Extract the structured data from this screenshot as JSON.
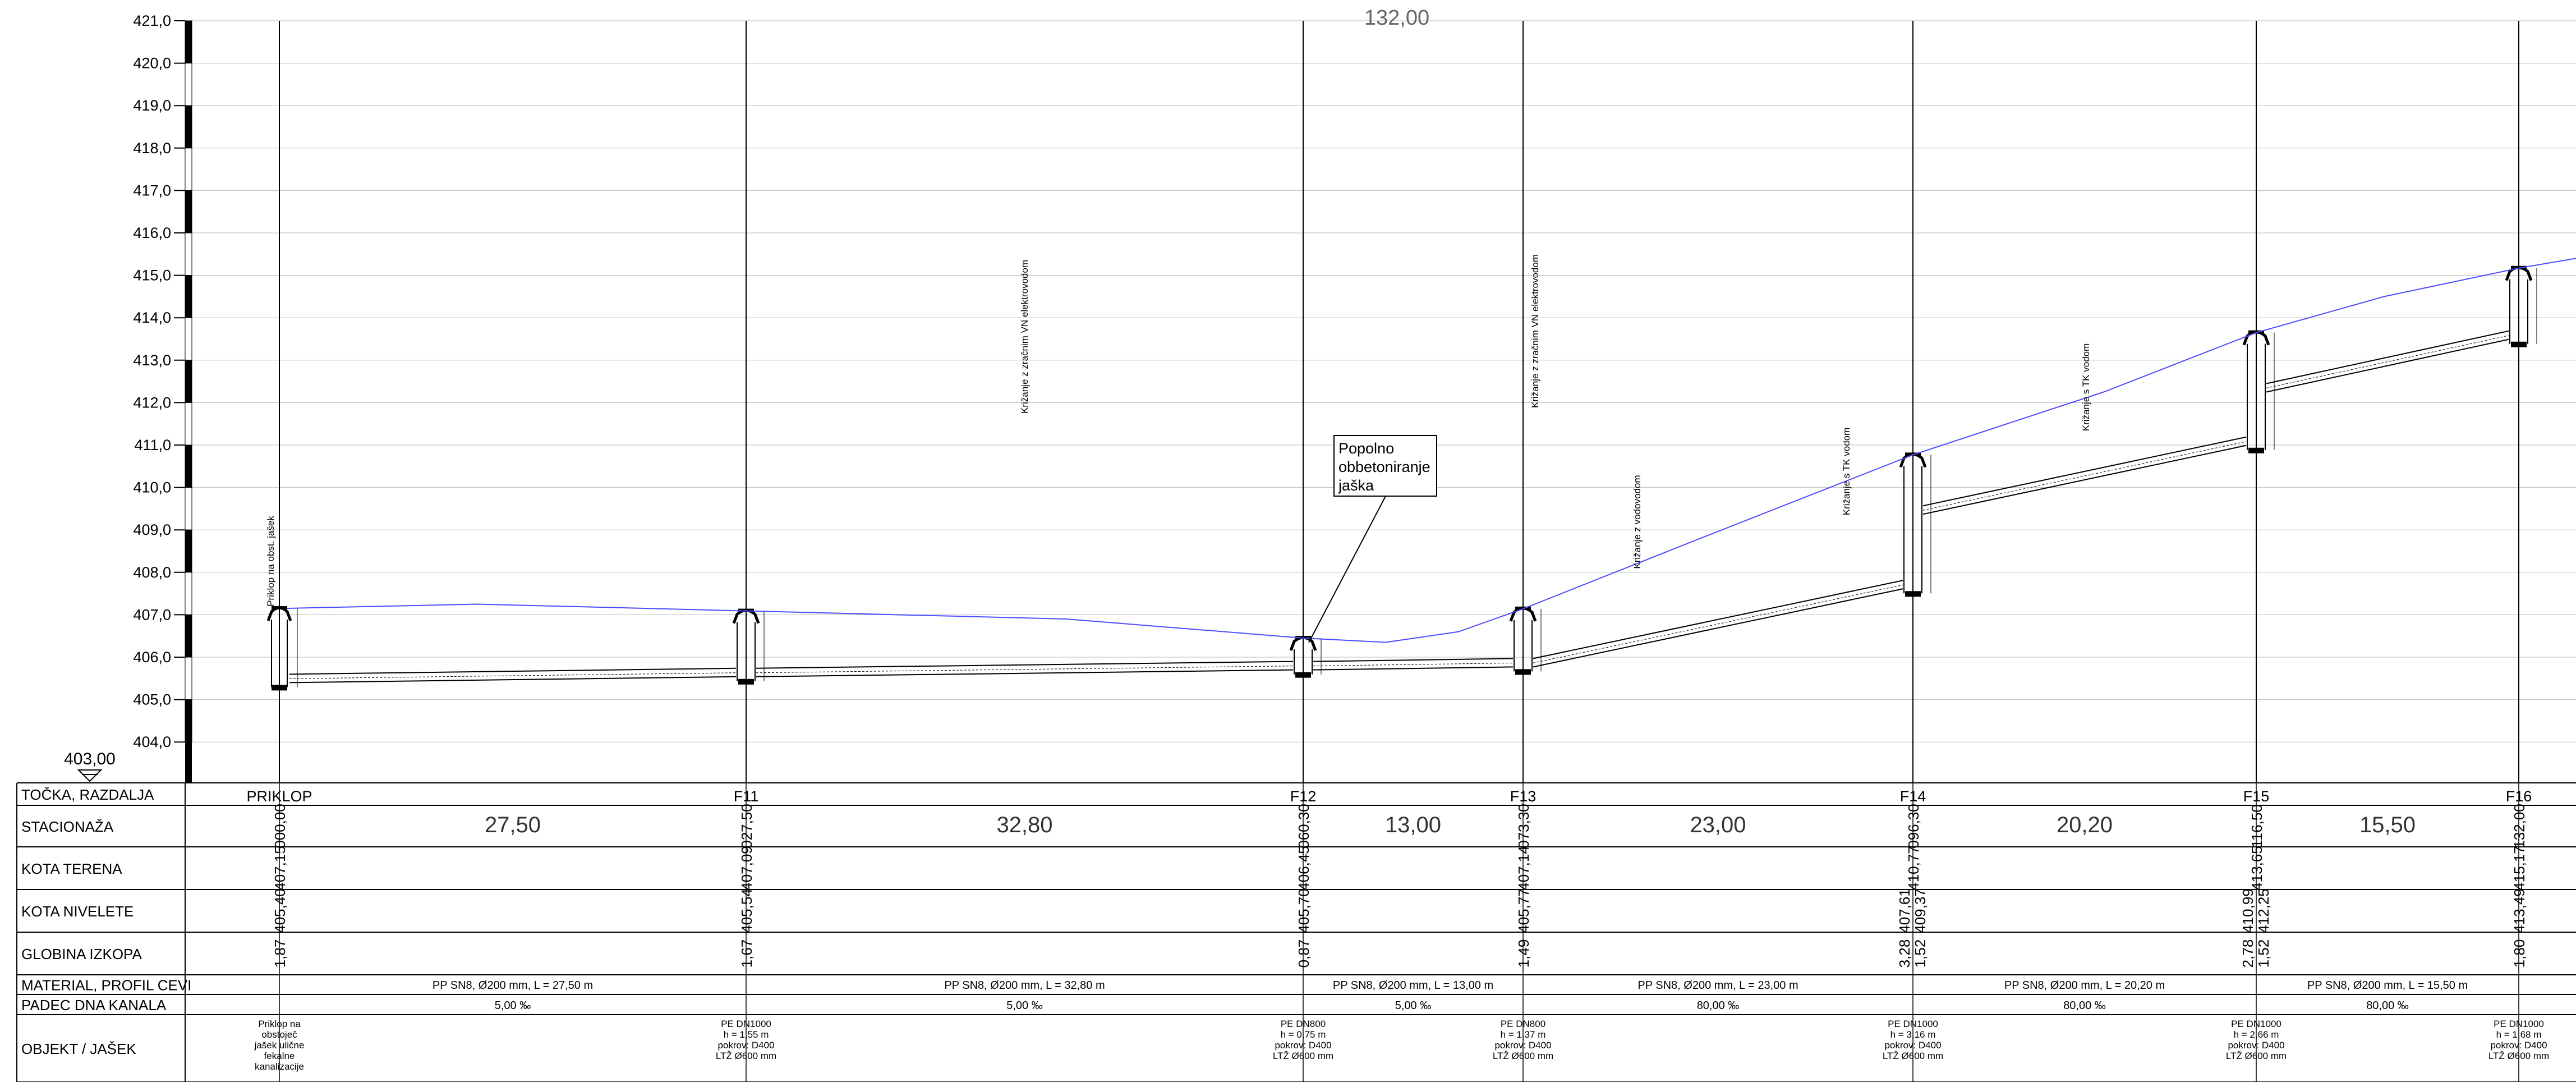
{
  "elevation_axis": {
    "ticks": [
      "421,0",
      "420,0",
      "419,0",
      "418,0",
      "417,0",
      "416,0",
      "415,0",
      "414,0",
      "413,0",
      "412,0",
      "411,0",
      "410,0",
      "409,0",
      "408,0",
      "407,0",
      "406,0",
      "405,0",
      "404,0"
    ],
    "datum": "403,00"
  },
  "top_length": "132,00",
  "row_labels": [
    "TOČKA, RAZDALJA",
    "STACIONAŽA",
    "KOTA TERENA",
    "KOTA NIVELETE",
    "GLOBINA IZKOPA",
    "MATERIAL, PROFIL CEVI",
    "PADEC DNA KANALA",
    "OBJEKT / JAŠEK"
  ],
  "points": [
    {
      "name": "PRIKLOP",
      "stationing": "000,00",
      "terrain": "407,15",
      "invert": "405,40",
      "invert2": "",
      "depth": "1,87",
      "depth2": "",
      "object": [
        "Priklop na",
        "obstoječ",
        "jašek ulične",
        "fekalne",
        "kanalizacije"
      ],
      "vertical_note": "Priklop na obst. jašek"
    },
    {
      "name": "F11",
      "stationing": "027,50",
      "terrain": "407,09",
      "invert": "405,54",
      "invert2": "",
      "depth": "1,67",
      "depth2": "",
      "object": [
        "PE DN1000",
        "h = 1,55 m",
        "pokrov: D400",
        "LTŽ Ø600 mm"
      ]
    },
    {
      "name": "F12",
      "stationing": "060,30",
      "terrain": "406,45",
      "invert": "405,70",
      "invert2": "",
      "depth": "0,87",
      "depth2": "",
      "object": [
        "PE DN800",
        "h = 0,75 m",
        "pokrov: D400",
        "LTŽ Ø600 mm"
      ]
    },
    {
      "name": "F13",
      "stationing": "073,30",
      "terrain": "407,14",
      "invert": "405,77",
      "invert2": "",
      "depth": "1,49",
      "depth2": "",
      "object": [
        "PE DN800",
        "h = 1,37 m",
        "pokrov: D400",
        "LTŽ Ø600 mm"
      ]
    },
    {
      "name": "F14",
      "stationing": "096,30",
      "terrain": "410,77",
      "invert": "407,61",
      "invert2": "409,37",
      "depth": "3,28",
      "depth2": "1,52",
      "object": [
        "PE DN1000",
        "h = 3,16 m",
        "pokrov: D400",
        "LTŽ Ø600 mm"
      ]
    },
    {
      "name": "F15",
      "stationing": "116,50",
      "terrain": "413,65",
      "invert": "410,99",
      "invert2": "412,25",
      "depth": "2,78",
      "depth2": "1,52",
      "object": [
        "PE DN1000",
        "h = 2,66 m",
        "pokrov: D400",
        "LTŽ Ø600 mm"
      ]
    },
    {
      "name": "F16",
      "stationing": "132,00",
      "terrain": "415,17",
      "invert": "413,49",
      "invert2": "",
      "depth": "1,80",
      "depth2": "",
      "object": [
        "PE DN1000",
        "h = 1,68 m",
        "pokrov: D400",
        "LTŽ Ø600 mm"
      ]
    }
  ],
  "segments": [
    {
      "distance": "27,50",
      "pipe": "PP SN8, Ø200 mm, L = 27,50 m",
      "slope": "5,00 ‰"
    },
    {
      "distance": "32,80",
      "pipe": "PP SN8, Ø200 mm, L = 32,80 m",
      "slope": "5,00 ‰"
    },
    {
      "distance": "13,00",
      "pipe": "PP SN8, Ø200 mm, L = 13,00 m",
      "slope": "5,00 ‰"
    },
    {
      "distance": "23,00",
      "pipe": "PP SN8, Ø200 mm, L = 23,00 m",
      "slope": "80,00 ‰"
    },
    {
      "distance": "20,20",
      "pipe": "PP SN8, Ø200 mm, L = 20,20 m",
      "slope": "80,00 ‰"
    },
    {
      "distance": "15,50",
      "pipe": "PP SN8, Ø200 mm, L = 15,50 m",
      "slope": "80,00 ‰"
    }
  ],
  "crossings": [
    "Križanje z zračnim VN elektrovodom",
    "Križanje z zračnim VN elektrovodom",
    "Križanje z vodovodom",
    "Križanje s TK vodom",
    "Križanje s TK vodom"
  ],
  "callout": [
    "Popolno",
    "obbetoniranje",
    "jaška"
  ],
  "colors": {
    "terrain": "#4d4dff",
    "lines": "#000000",
    "grid": "#bbbbbb"
  }
}
